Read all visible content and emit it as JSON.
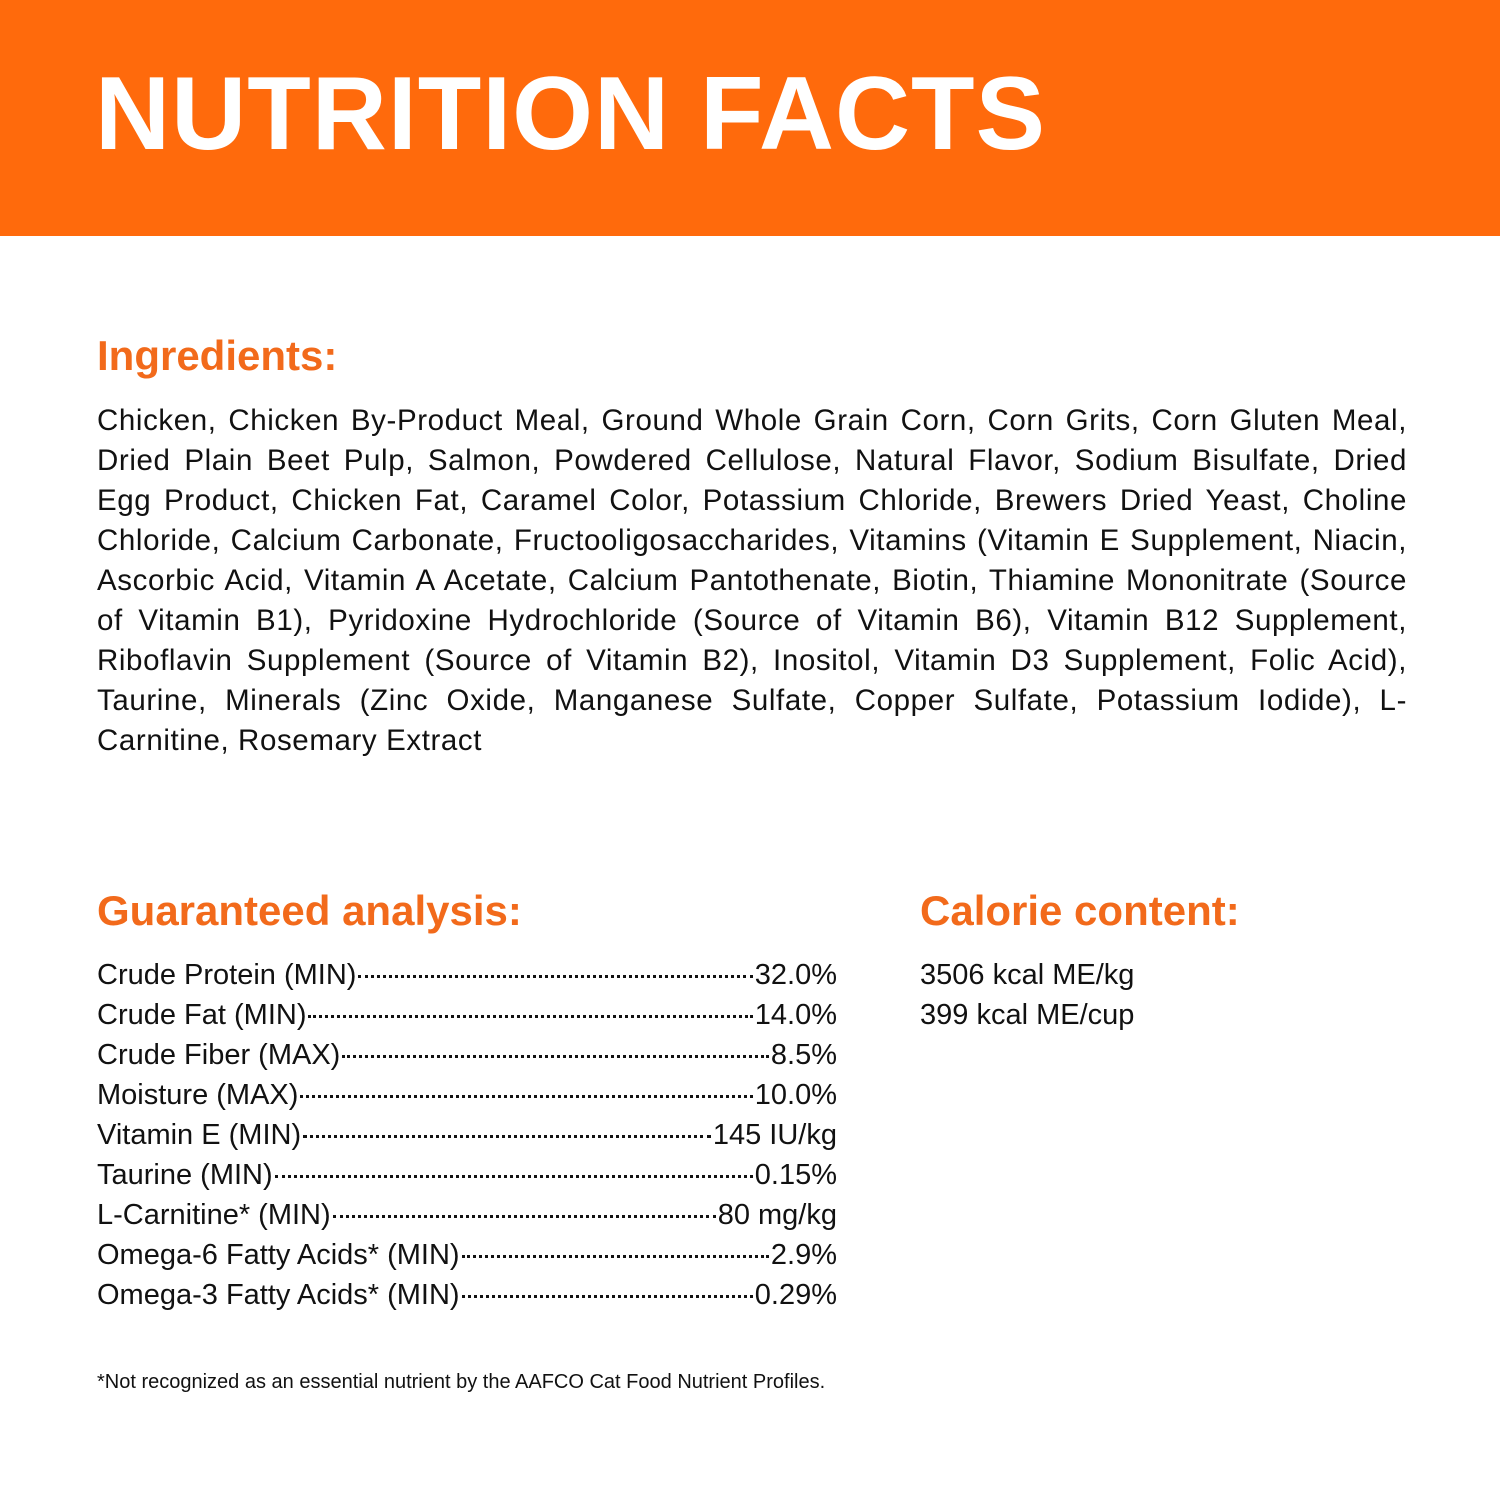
{
  "header": {
    "title": "NUTRITION FACTS"
  },
  "ingredients": {
    "heading": "Ingredients:",
    "text": "Chicken, Chicken By-Product Meal, Ground Whole Grain Corn, Corn Grits, Corn Gluten Meal, Dried Plain Beet Pulp, Salmon, Powdered Cellulose, Natural Flavor, Sodium Bisulfate, Dried Egg Product, Chicken Fat, Caramel Color, Potassium Chloride, Brewers Dried Yeast, Choline Chloride, Calcium Carbonate, Fructooligosaccharides, Vitamins (Vitamin E Supplement, Niacin, Ascorbic Acid, Vitamin A Acetate, Calcium Pantothenate, Biotin, Thiamine Mononitrate (Source of Vitamin B1), Pyridoxine Hydrochloride (Source of Vitamin B6), Vitamin B12 Supplement, Riboflavin Supplement (Source of Vitamin B2), Inositol, Vitamin D3 Supplement, Folic Acid), Taurine, Minerals (Zinc Oxide, Manganese Sulfate, Copper Sulfate, Potassium Iodide), L-Carnitine, Rosemary Extract"
  },
  "analysis": {
    "heading": "Guaranteed analysis:",
    "rows": [
      [
        "Crude Protein (MIN)",
        "32.0%"
      ],
      [
        "Crude Fat (MIN)",
        "14.0%"
      ],
      [
        "Crude Fiber (MAX)",
        "8.5%"
      ],
      [
        "Moisture (MAX)",
        "10.0%"
      ],
      [
        "Vitamin E (MIN)",
        "145 IU/kg"
      ],
      [
        "Taurine (MIN)",
        "0.15%"
      ],
      [
        "L-Carnitine* (MIN)",
        "80 mg/kg"
      ],
      [
        "Omega-6 Fatty Acids* (MIN)",
        "2.9%"
      ],
      [
        "Omega-3 Fatty Acids* (MIN)",
        "0.29%"
      ]
    ]
  },
  "calories": {
    "heading": "Calorie content:",
    "lines": [
      "3506 kcal ME/kg",
      "399 kcal ME/cup"
    ]
  },
  "footnote": "*Not recognized as an essential nutrient by the AAFCO Cat Food Nutrient Profiles."
}
